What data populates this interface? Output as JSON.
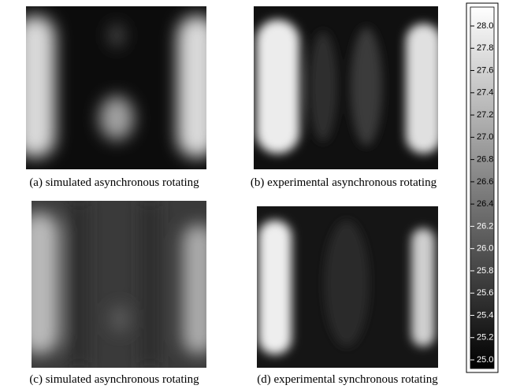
{
  "panels": [
    {
      "caption": "(a) simulated asynchronous rotating"
    },
    {
      "caption": "(b) experimental asynchronous rotating"
    },
    {
      "caption": "(c) simulated asynchronous rotating"
    },
    {
      "caption": "(d) experimental synchronous rotating"
    }
  ],
  "colorbar": {
    "lim": [
      25,
      28
    ],
    "ticks": [
      {
        "value": 25,
        "label": "25.0"
      },
      25.2,
      25.4,
      25.6,
      25.8,
      {
        "value": 26,
        "label": "26.0"
      },
      26.2,
      26.4,
      26.6,
      26.8,
      {
        "value": 27,
        "label": "27.0"
      },
      27.2,
      27.4,
      27.6,
      27.8,
      {
        "value": 28,
        "label": "28.0"
      }
    ]
  }
}
